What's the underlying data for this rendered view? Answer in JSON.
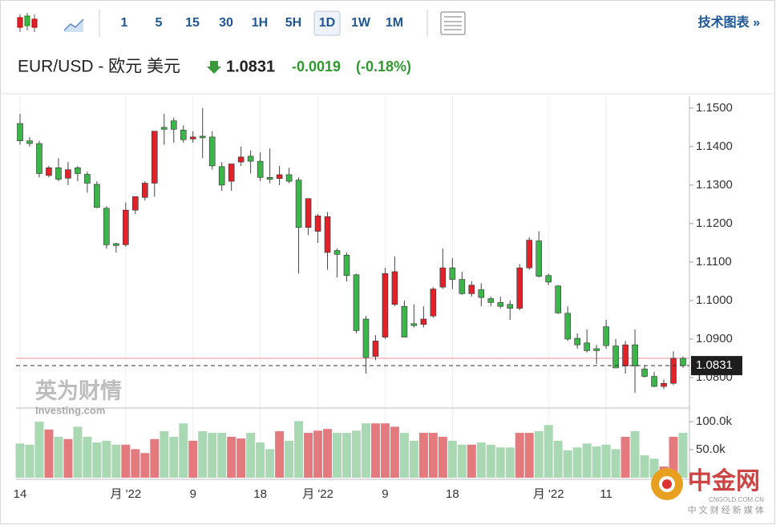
{
  "toolbar": {
    "intervals": [
      "1",
      "5",
      "15",
      "30",
      "1H",
      "5H",
      "1D",
      "1W",
      "1M"
    ],
    "selected_index": 6,
    "link": "技术图表 »"
  },
  "header": {
    "name": "EUR/USD - 欧元 美元",
    "price": "1.0831",
    "change": "-0.0019",
    "change_pct": "(-0.18%)"
  },
  "watermarks": {
    "brand": "英为财情",
    "brand_sub": "Investing.com",
    "site": "中金网",
    "site_url": "CNGOLD.COM.CN",
    "site_sub": "中 文 财 经 新 媒 体"
  },
  "chart_data": {
    "type": "candlestick",
    "categories": [
      "14",
      null,
      null,
      null,
      null,
      null,
      null,
      null,
      null,
      null,
      null,
      "月 '22",
      null,
      null,
      null,
      null,
      null,
      null,
      "9",
      null,
      null,
      null,
      null,
      null,
      null,
      "18",
      null,
      null,
      null,
      null,
      null,
      "月 '22",
      null,
      null,
      null,
      null,
      null,
      null,
      "9",
      null,
      null,
      null,
      null,
      null,
      null,
      "18",
      null,
      null,
      null,
      null,
      null,
      null,
      null,
      null,
      null,
      "月 '22",
      null,
      null,
      null,
      null,
      null,
      "11",
      null,
      null,
      null,
      null,
      null,
      null,
      null,
      null
    ],
    "open": [
      1.146,
      1.1415,
      1.1408,
      1.1325,
      1.1345,
      1.1318,
      1.1345,
      1.1328,
      1.1302,
      1.124,
      1.1148,
      1.1145,
      1.1235,
      1.1268,
      1.1305,
      1.145,
      1.1467,
      1.1443,
      1.142,
      1.1427,
      1.1425,
      1.1348,
      1.131,
      1.136,
      1.1375,
      1.1362,
      1.132,
      1.1317,
      1.1327,
      1.1313,
      1.119,
      1.118,
      1.1125,
      1.113,
      1.1118,
      1.1067,
      1.0952,
      1.0855,
      1.0905,
      1.099,
      1.0985,
      1.094,
      1.0938,
      1.096,
      1.1035,
      1.1085,
      1.1055,
      1.1018,
      1.1028,
      1.1005,
      1.0995,
      1.099,
      1.098,
      1.1085,
      1.1155,
      1.1065,
      1.1038,
      1.0967,
      1.0902,
      1.089,
      1.0875,
      1.0932,
      1.0882,
      1.083,
      1.0885,
      1.0822,
      1.0803,
      1.0777,
      1.0785,
      1.085
    ],
    "high": [
      1.1485,
      1.1425,
      1.1415,
      1.135,
      1.137,
      1.136,
      1.135,
      1.1335,
      1.131,
      1.1245,
      1.115,
      1.1255,
      1.127,
      1.131,
      1.144,
      1.1485,
      1.1475,
      1.1455,
      1.144,
      1.15,
      1.144,
      1.136,
      1.1355,
      1.14,
      1.139,
      1.1385,
      1.1395,
      1.135,
      1.1345,
      1.132,
      1.126,
      1.1225,
      1.123,
      1.1135,
      1.1125,
      1.107,
      1.096,
      1.091,
      1.1085,
      1.1115,
      1.1,
      1.099,
      1.0985,
      1.1035,
      1.1135,
      1.111,
      1.1075,
      1.105,
      1.1045,
      1.101,
      1.101,
      1.1,
      1.1095,
      1.1165,
      1.118,
      1.107,
      1.104,
      1.0985,
      1.0915,
      1.0925,
      1.0885,
      1.095,
      1.09,
      1.0895,
      1.0925,
      1.083,
      1.0815,
      1.0795,
      1.0868,
      1.0855
    ],
    "low": [
      1.1405,
      1.14,
      1.132,
      1.132,
      1.131,
      1.13,
      1.131,
      1.128,
      1.124,
      1.1135,
      1.1125,
      1.114,
      1.1225,
      1.126,
      1.127,
      1.1405,
      1.141,
      1.141,
      1.141,
      1.137,
      1.134,
      1.1285,
      1.1285,
      1.135,
      1.133,
      1.131,
      1.1305,
      1.13,
      1.1305,
      1.107,
      1.117,
      1.115,
      1.108,
      1.106,
      1.105,
      1.0915,
      1.081,
      1.0845,
      1.09,
      1.0985,
      1.0905,
      1.093,
      1.093,
      1.0955,
      1.103,
      1.103,
      1.1015,
      1.101,
      1.0985,
      1.0985,
      1.098,
      1.095,
      1.0975,
      1.108,
      1.106,
      1.104,
      1.0965,
      1.0895,
      1.0875,
      1.0865,
      1.0835,
      1.0875,
      1.0825,
      1.081,
      1.076,
      1.08,
      1.0775,
      1.077,
      1.078,
      1.0825
    ],
    "close": [
      1.1415,
      1.1408,
      1.133,
      1.1345,
      1.1315,
      1.134,
      1.133,
      1.1305,
      1.1242,
      1.1145,
      1.1143,
      1.1235,
      1.127,
      1.1305,
      1.144,
      1.1445,
      1.1445,
      1.1418,
      1.1425,
      1.1423,
      1.135,
      1.13,
      1.1355,
      1.1373,
      1.1362,
      1.132,
      1.1315,
      1.1327,
      1.131,
      1.119,
      1.1265,
      1.122,
      1.1218,
      1.112,
      1.1065,
      1.0922,
      1.0852,
      1.0895,
      1.107,
      1.1075,
      1.0905,
      1.0935,
      1.0952,
      1.103,
      1.1085,
      1.1055,
      1.1018,
      1.104,
      1.1008,
      1.0995,
      1.0985,
      1.098,
      1.1085,
      1.1157,
      1.1063,
      1.1048,
      1.0968,
      1.09,
      1.0885,
      1.087,
      1.087,
      1.0883,
      1.0825,
      1.0885,
      1.083,
      1.0803,
      1.0777,
      1.0785,
      1.085,
      1.0831
    ],
    "volume": [
      61000,
      59000,
      100000,
      86000,
      73000,
      69000,
      91000,
      73000,
      63000,
      66000,
      59000,
      59000,
      51000,
      44000,
      69000,
      83000,
      73000,
      97000,
      66000,
      83000,
      80000,
      80000,
      73000,
      70000,
      80000,
      63000,
      51000,
      83000,
      66000,
      101000,
      80000,
      84000,
      87000,
      80000,
      80000,
      84000,
      97000,
      97000,
      97000,
      91000,
      80000,
      66000,
      80000,
      80000,
      73000,
      66000,
      59000,
      59000,
      63000,
      59000,
      54000,
      54000,
      80000,
      80000,
      83000,
      94000,
      66000,
      49000,
      54000,
      61000,
      56000,
      59000,
      51000,
      73000,
      83000,
      40000,
      34000,
      20000,
      73000,
      80000
    ],
    "up_color": "#e0222a",
    "down_color": "#3cb54a",
    "up_volume_color": "#e57a7e",
    "down_volume_color": "#a9d9b3",
    "ylim": [
      1.0723,
      1.1531
    ],
    "yticks": [
      {
        "value": 1.15,
        "label": "1.1500"
      },
      {
        "value": 1.14,
        "label": "1.1400"
      },
      {
        "value": 1.13,
        "label": "1.1300"
      },
      {
        "value": 1.12,
        "label": "1.1200"
      },
      {
        "value": 1.11,
        "label": "1.1100"
      },
      {
        "value": 1.1,
        "label": "1.1000"
      },
      {
        "value": 1.09,
        "label": "1.0900"
      },
      {
        "value": 1.08,
        "label": "1.0800"
      }
    ],
    "volume_ylim": [
      0,
      123000
    ],
    "volume_yticks": [
      {
        "value": 100000,
        "label": "100.0k"
      },
      {
        "value": 50000,
        "label": "50.0k"
      }
    ],
    "previous_close": 1.085,
    "previous_close_color": "#f2a9ad",
    "grid": true
  }
}
